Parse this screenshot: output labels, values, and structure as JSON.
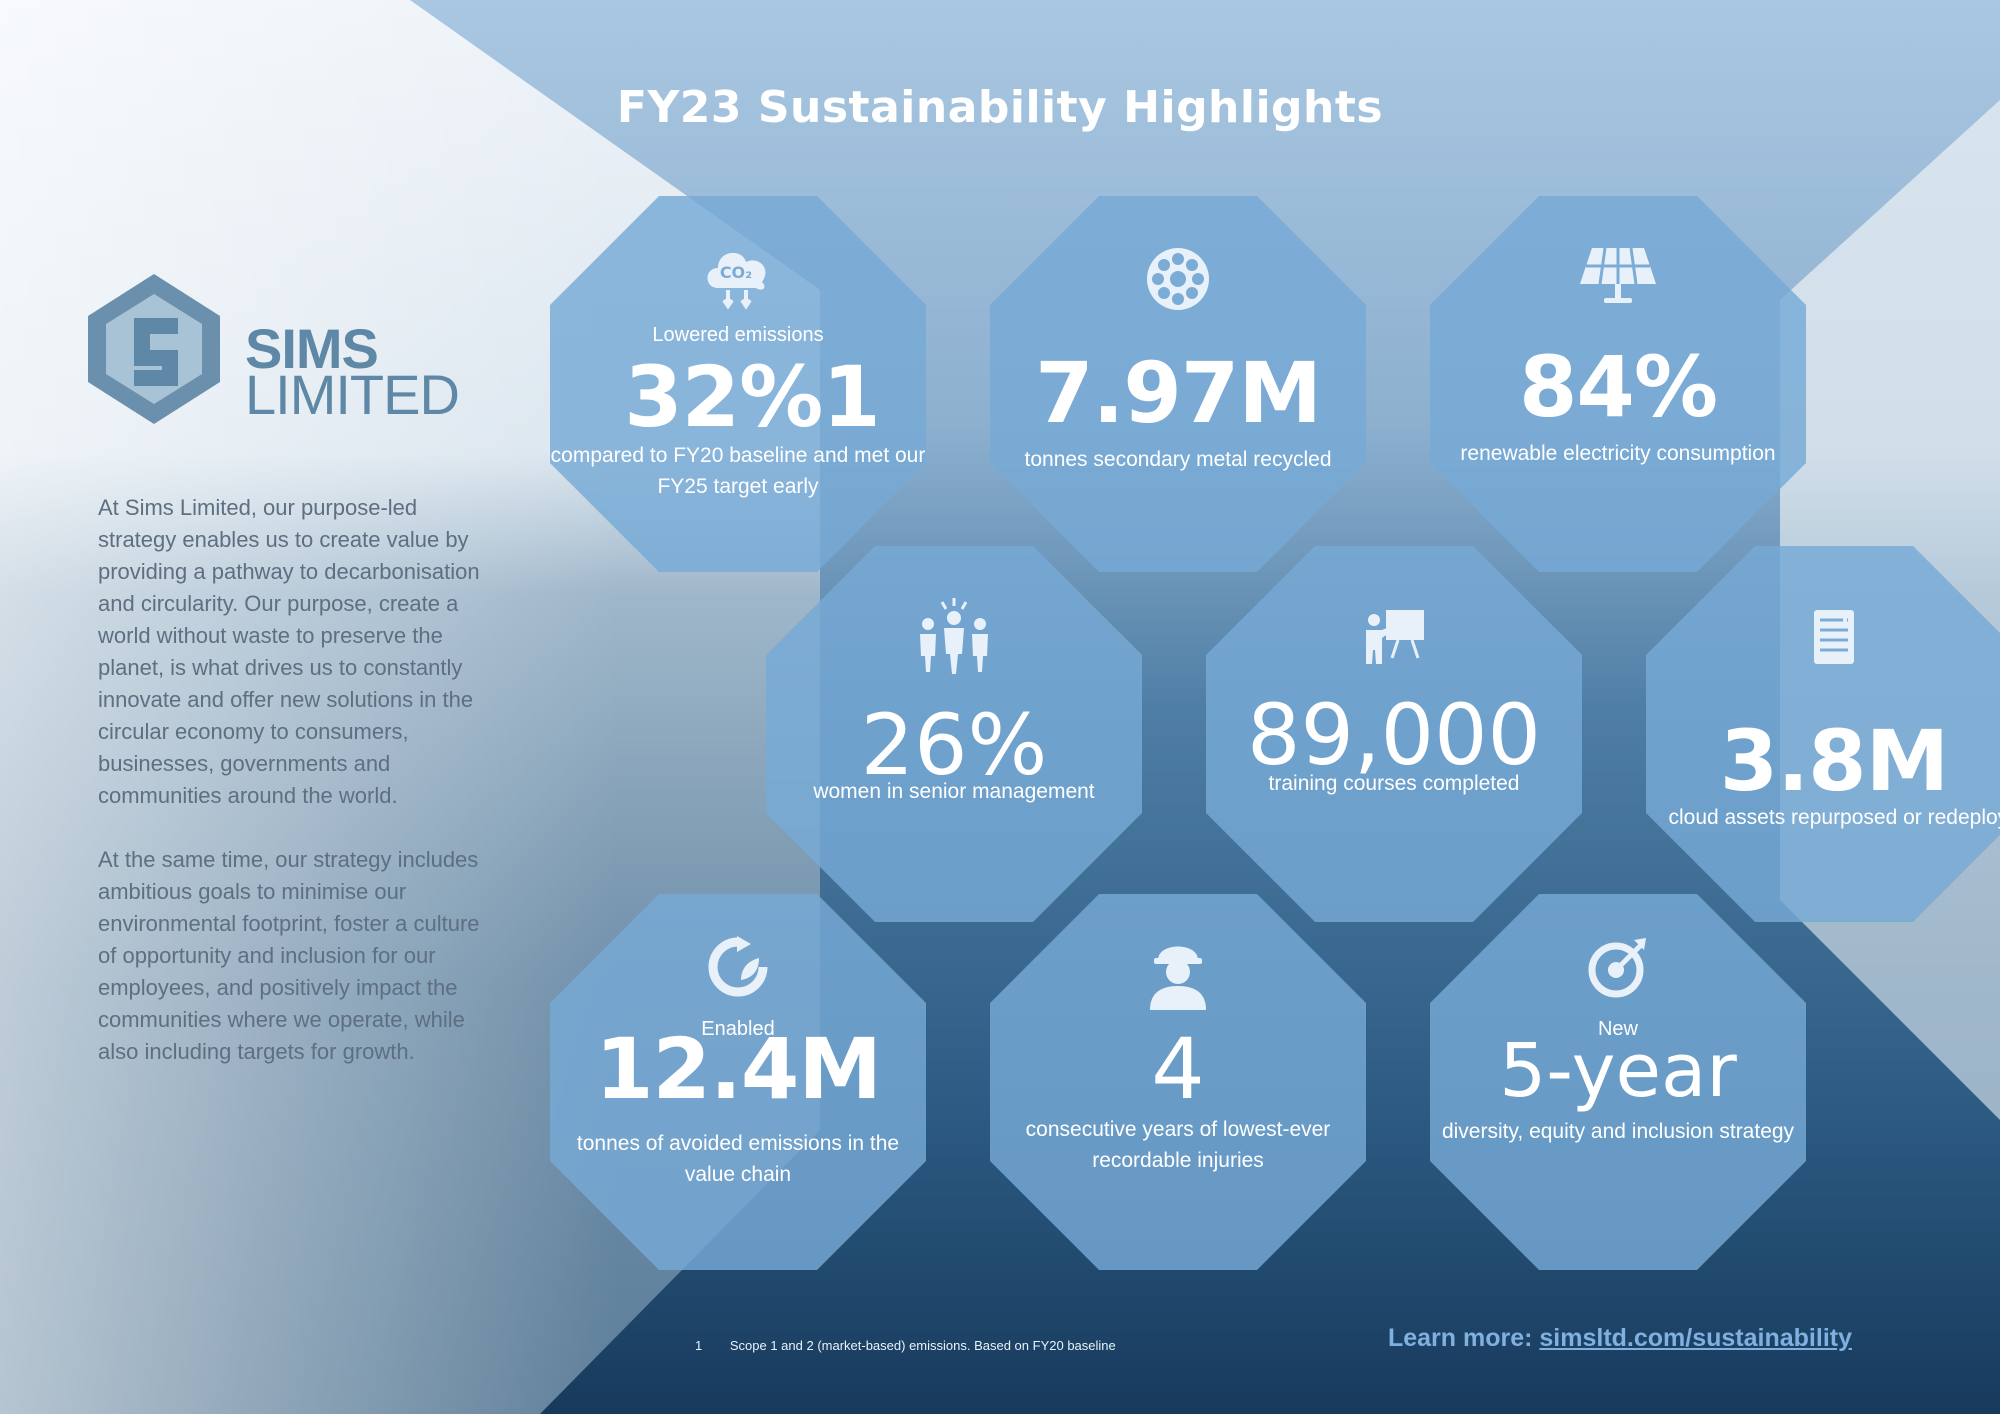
{
  "title": "FY23 Sustainability Highlights",
  "brand": {
    "line1": "SIMS",
    "line2": "LIMITED"
  },
  "intro": [
    "At Sims Limited, our purpose-led strategy enables us to create value by providing a pathway to decarbonisation and circularity. Our purpose, create a world without waste to preserve the planet, is what drives us to constantly innovate and offer new solutions in the circular economy to consumers, businesses, governments and communities around the world.",
    "At the same time, our strategy includes ambitious goals to minimise our environmental footprint, foster a culture of opportunity and inclusion for our employees, and positively impact the communities where we operate, while also including targets for growth."
  ],
  "highlights": [
    {
      "icon": "co2-cloud-icon",
      "pre": "Lowered emissions",
      "value": "32%",
      "sup": "1",
      "desc": "compared to FY20 baseline and met our FY25 target early"
    },
    {
      "icon": "metal-disc-icon",
      "pre": "",
      "value": "7.97M",
      "desc": "tonnes secondary metal recycled"
    },
    {
      "icon": "solar-panel-icon",
      "pre": "",
      "value": "84%",
      "desc": "renewable electricity consumption"
    },
    {
      "icon": "people-icon",
      "pre": "",
      "value": "26%",
      "desc": "women in senior management"
    },
    {
      "icon": "presentation-icon",
      "pre": "",
      "value": "89,000",
      "desc": "training courses completed"
    },
    {
      "icon": "server-icon",
      "pre": "",
      "value": "3.8M",
      "desc": "cloud assets repurposed or redeployed"
    },
    {
      "icon": "recycle-leaf-icon",
      "pre": "Enabled",
      "value": "12.4M",
      "desc": "tonnes of avoided emissions in the value chain"
    },
    {
      "icon": "worker-helmet-icon",
      "pre": "",
      "value": "4",
      "desc": "consecutive years of lowest-ever recordable injuries"
    },
    {
      "icon": "target-arrow-icon",
      "pre": "New",
      "value": "5-year",
      "desc": "diversity, equity and inclusion strategy"
    }
  ],
  "footnote": {
    "number": "1",
    "text": "Scope 1 and 2 (market-based) emissions. Based on FY20 baseline"
  },
  "learn_more": {
    "label": "Learn more: ",
    "link": "simsltd.com/sustainability"
  }
}
